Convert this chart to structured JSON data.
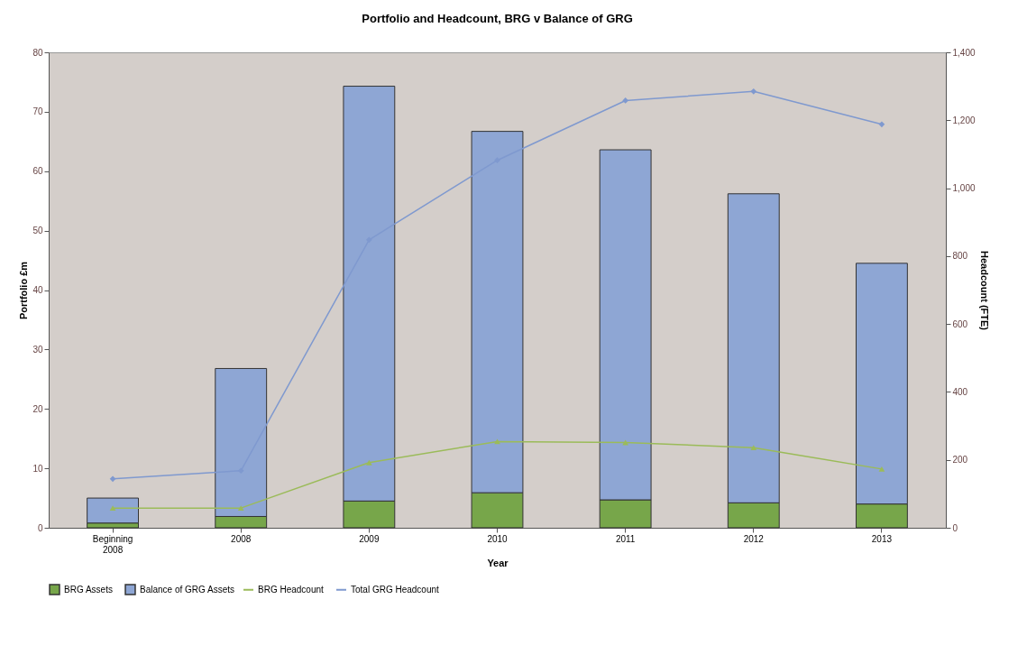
{
  "chart_data": {
    "type": "bar",
    "title": "Portfolio and Headcount, BRG v Balance of GRG",
    "xlabel": "Year",
    "ylabel": "Portfolio £m",
    "y2label": "Headcount (FTE)",
    "categories": [
      "Beginning 2008",
      "2008",
      "2009",
      "2010",
      "2011",
      "2012",
      "2013"
    ],
    "stacked": true,
    "series": [
      {
        "name": "BRG Assets",
        "color": "#77a64a",
        "values": [
          0.8,
          1.9,
          4.5,
          5.9,
          4.7,
          4.2,
          4.0
        ]
      },
      {
        "name": "Balance of GRG Assets",
        "color": "#8ea6d4",
        "values": [
          4.2,
          24.9,
          69.8,
          60.8,
          58.9,
          52.0,
          40.5
        ]
      },
      {
        "name": "BRG Headcount",
        "type": "line",
        "axis": "y2",
        "marker": "triangle",
        "color": "#9bbb59",
        "values": [
          58,
          58,
          192,
          254,
          251,
          236,
          173
        ]
      },
      {
        "name": "Total GRG Headcount",
        "type": "line",
        "axis": "y2",
        "marker": "diamond",
        "color": "#7f99cf",
        "values": [
          144,
          168,
          848,
          1082,
          1258,
          1285,
          1188
        ]
      }
    ],
    "ylim": [
      0,
      80
    ],
    "yticks": [
      0,
      10,
      20,
      30,
      40,
      50,
      60,
      70,
      80
    ],
    "y2lim": [
      0,
      1400
    ],
    "y2ticks": [
      0,
      200,
      400,
      600,
      800,
      {
        "value": 1000,
        "label": "1,000"
      },
      {
        "value": 1200,
        "label": "1,200"
      },
      {
        "value": 1400,
        "label": "1,400"
      }
    ],
    "grid": false,
    "legend": "bottom"
  }
}
